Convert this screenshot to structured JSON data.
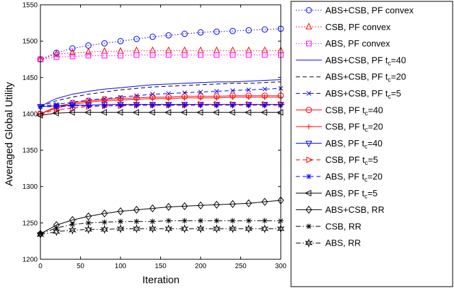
{
  "chart_data": {
    "type": "line",
    "title": "",
    "xlabel": "Iteration",
    "ylabel": "Averaged Global Utility",
    "xlim": [
      0,
      300
    ],
    "ylim": [
      1200,
      1550
    ],
    "xticks": [
      0,
      50,
      100,
      150,
      200,
      250,
      300
    ],
    "yticks": [
      1200,
      1250,
      1300,
      1350,
      1400,
      1450,
      1500,
      1550
    ],
    "grid": false,
    "legend_position": "outside-right",
    "series": [
      {
        "name": "ABS+CSB, PF convex",
        "name_parts": [
          "ABS+CSB, PF convex"
        ],
        "color": "#0000ff",
        "dash": "dotted",
        "marker": "circle",
        "marker_every": 20,
        "x": [
          0,
          20,
          40,
          60,
          80,
          100,
          120,
          140,
          160,
          180,
          200,
          220,
          240,
          260,
          280,
          300
        ],
        "y": [
          1475,
          1484,
          1490,
          1494,
          1497,
          1500,
          1503,
          1506,
          1508,
          1510,
          1512,
          1513,
          1514,
          1515,
          1516,
          1517
        ]
      },
      {
        "name": "CSB, PF convex",
        "name_parts": [
          "CSB, PF convex"
        ],
        "color": "#ff0000",
        "dash": "dotted",
        "marker": "triangle",
        "marker_every": 20,
        "x": [
          0,
          20,
          40,
          60,
          80,
          100,
          120,
          140,
          160,
          180,
          200,
          220,
          240,
          260,
          280,
          300
        ],
        "y": [
          1475,
          1482,
          1484,
          1485,
          1486,
          1486,
          1487,
          1487,
          1487,
          1487,
          1487,
          1487,
          1487,
          1487,
          1487,
          1487
        ]
      },
      {
        "name": "ABS, PF convex",
        "name_parts": [
          "ABS, PF convex"
        ],
        "color": "#ff00ff",
        "dash": "dotted",
        "marker": "square",
        "marker_every": 20,
        "x": [
          0,
          20,
          40,
          60,
          80,
          100,
          120,
          140,
          160,
          180,
          200,
          220,
          240,
          260,
          280,
          300
        ],
        "y": [
          1475,
          1478,
          1479,
          1480,
          1480,
          1480,
          1481,
          1481,
          1481,
          1481,
          1481,
          1481,
          1481,
          1481,
          1481,
          1481
        ]
      },
      {
        "name": "ABS+CSB, PF tc=40",
        "name_parts": [
          "ABS+CSB, PF t",
          "c",
          "=40"
        ],
        "color": "#0000ff",
        "dash": "solid",
        "marker": "none",
        "marker_every": 20,
        "x": [
          0,
          10,
          20,
          40,
          60,
          80,
          100,
          120,
          140,
          160,
          180,
          200,
          220,
          240,
          260,
          280,
          300
        ],
        "y": [
          1410,
          1416,
          1421,
          1427,
          1431,
          1434,
          1436,
          1438,
          1440,
          1441,
          1442,
          1443,
          1444,
          1444,
          1445,
          1446,
          1447
        ]
      },
      {
        "name": "ABS+CSB, PF tc=20",
        "name_parts": [
          "ABS+CSB, PF t",
          "c",
          "=20"
        ],
        "color": "#000000",
        "dash": "dashed",
        "marker": "none",
        "marker_every": 20,
        "x": [
          0,
          10,
          20,
          40,
          60,
          80,
          100,
          120,
          140,
          160,
          180,
          200,
          220,
          240,
          260,
          280,
          300
        ],
        "y": [
          1410,
          1414,
          1418,
          1423,
          1427,
          1430,
          1433,
          1435,
          1437,
          1438,
          1439,
          1440,
          1441,
          1442,
          1442,
          1443,
          1444
        ]
      },
      {
        "name": "ABS+CSB, PF tc=5",
        "name_parts": [
          "ABS+CSB, PF t",
          "c",
          "=5"
        ],
        "color": "#0000ff",
        "dash": "dashed",
        "marker": "x",
        "marker_every": 20,
        "x": [
          0,
          20,
          40,
          60,
          80,
          100,
          120,
          140,
          160,
          180,
          200,
          220,
          240,
          260,
          280,
          300
        ],
        "y": [
          1410,
          1413,
          1416,
          1419,
          1421,
          1423,
          1425,
          1427,
          1428,
          1429,
          1430,
          1431,
          1432,
          1433,
          1434,
          1435
        ]
      },
      {
        "name": "CSB, PF tc=40",
        "name_parts": [
          "CSB, PF t",
          "c",
          "=40"
        ],
        "color": "#ff0000",
        "dash": "solid",
        "marker": "circle",
        "marker_every": 20,
        "x": [
          0,
          20,
          40,
          60,
          80,
          100,
          120,
          140,
          160,
          180,
          200,
          220,
          240,
          260,
          280,
          300
        ],
        "y": [
          1400,
          1410,
          1415,
          1418,
          1420,
          1421,
          1422,
          1423,
          1423,
          1424,
          1424,
          1424,
          1425,
          1425,
          1425,
          1425
        ]
      },
      {
        "name": "CSB, PF tc=20",
        "name_parts": [
          "CSB, PF t",
          "c",
          "=20"
        ],
        "color": "#ff0000",
        "dash": "solid",
        "marker": "plus",
        "marker_every": 20,
        "x": [
          0,
          20,
          40,
          60,
          80,
          100,
          120,
          140,
          160,
          180,
          200,
          220,
          240,
          260,
          280,
          300
        ],
        "y": [
          1400,
          1408,
          1413,
          1416,
          1418,
          1419,
          1420,
          1421,
          1421,
          1422,
          1422,
          1422,
          1423,
          1423,
          1423,
          1423
        ]
      },
      {
        "name": "ABS, PF tc=40",
        "name_parts": [
          "ABS, PF t",
          "c",
          "=40"
        ],
        "color": "#0000ff",
        "dash": "solid",
        "marker": "triangle-down",
        "marker_every": 20,
        "x": [
          0,
          20,
          40,
          60,
          80,
          100,
          120,
          140,
          160,
          180,
          200,
          220,
          240,
          260,
          280,
          300
        ],
        "y": [
          1410,
          1411,
          1412,
          1412,
          1413,
          1413,
          1413,
          1413,
          1413,
          1413,
          1413,
          1413,
          1413,
          1413,
          1413,
          1413
        ]
      },
      {
        "name": "CSB, PF tc=5",
        "name_parts": [
          "CSB, PF t",
          "c",
          "=5"
        ],
        "color": "#ff0000",
        "dash": "dashed",
        "marker": "triangle-right",
        "marker_every": 20,
        "x": [
          0,
          20,
          40,
          60,
          80,
          100,
          120,
          140,
          160,
          180,
          200,
          220,
          240,
          260,
          280,
          300
        ],
        "y": [
          1400,
          1405,
          1408,
          1410,
          1411,
          1411,
          1412,
          1412,
          1412,
          1412,
          1413,
          1413,
          1413,
          1413,
          1413,
          1413
        ]
      },
      {
        "name": "ABS, PF tc=20",
        "name_parts": [
          "ABS, PF t",
          "c",
          "=20"
        ],
        "color": "#0000ff",
        "dash": "dashed",
        "marker": "star",
        "marker_every": 20,
        "x": [
          0,
          20,
          40,
          60,
          80,
          100,
          120,
          140,
          160,
          180,
          200,
          220,
          240,
          260,
          280,
          300
        ],
        "y": [
          1410,
          1410,
          1411,
          1411,
          1411,
          1412,
          1412,
          1412,
          1412,
          1412,
          1412,
          1412,
          1412,
          1412,
          1412,
          1412
        ]
      },
      {
        "name": "ABS, PF tc=5",
        "name_parts": [
          "ABS, PF t",
          "c",
          "=5"
        ],
        "color": "#000000",
        "dash": "solid",
        "marker": "triangle-left",
        "marker_every": 20,
        "x": [
          0,
          20,
          40,
          60,
          80,
          100,
          120,
          140,
          160,
          180,
          200,
          220,
          240,
          260,
          280,
          300
        ],
        "y": [
          1398,
          1401,
          1402,
          1402,
          1402,
          1402,
          1402,
          1402,
          1402,
          1402,
          1402,
          1402,
          1402,
          1402,
          1402,
          1402
        ]
      },
      {
        "name": "ABS+CSB, RR",
        "name_parts": [
          "ABS+CSB, RR"
        ],
        "color": "#000000",
        "dash": "solid",
        "marker": "diamond",
        "marker_every": 20,
        "x": [
          0,
          20,
          40,
          60,
          80,
          100,
          120,
          140,
          160,
          180,
          200,
          220,
          240,
          260,
          280,
          300
        ],
        "y": [
          1235,
          1247,
          1254,
          1259,
          1263,
          1266,
          1268,
          1270,
          1272,
          1273,
          1274,
          1275,
          1276,
          1277,
          1279,
          1281
        ]
      },
      {
        "name": "CSB, RR",
        "name_parts": [
          "CSB, RR"
        ],
        "color": "#000000",
        "dash": "dashdot",
        "marker": "star",
        "marker_every": 20,
        "x": [
          0,
          20,
          40,
          60,
          80,
          100,
          120,
          140,
          160,
          180,
          200,
          220,
          240,
          260,
          280,
          300
        ],
        "y": [
          1235,
          1243,
          1248,
          1250,
          1251,
          1252,
          1252,
          1252,
          1253,
          1253,
          1253,
          1253,
          1253,
          1253,
          1253,
          1253
        ]
      },
      {
        "name": "ABS, RR",
        "name_parts": [
          "ABS, RR"
        ],
        "color": "#000000",
        "dash": "dashdot",
        "marker": "hexagram",
        "marker_every": 20,
        "x": [
          0,
          20,
          40,
          60,
          80,
          100,
          120,
          140,
          160,
          180,
          200,
          220,
          240,
          260,
          280,
          300
        ],
        "y": [
          1234,
          1238,
          1240,
          1241,
          1241,
          1242,
          1242,
          1242,
          1242,
          1242,
          1242,
          1242,
          1242,
          1242,
          1242,
          1242
        ]
      }
    ]
  }
}
